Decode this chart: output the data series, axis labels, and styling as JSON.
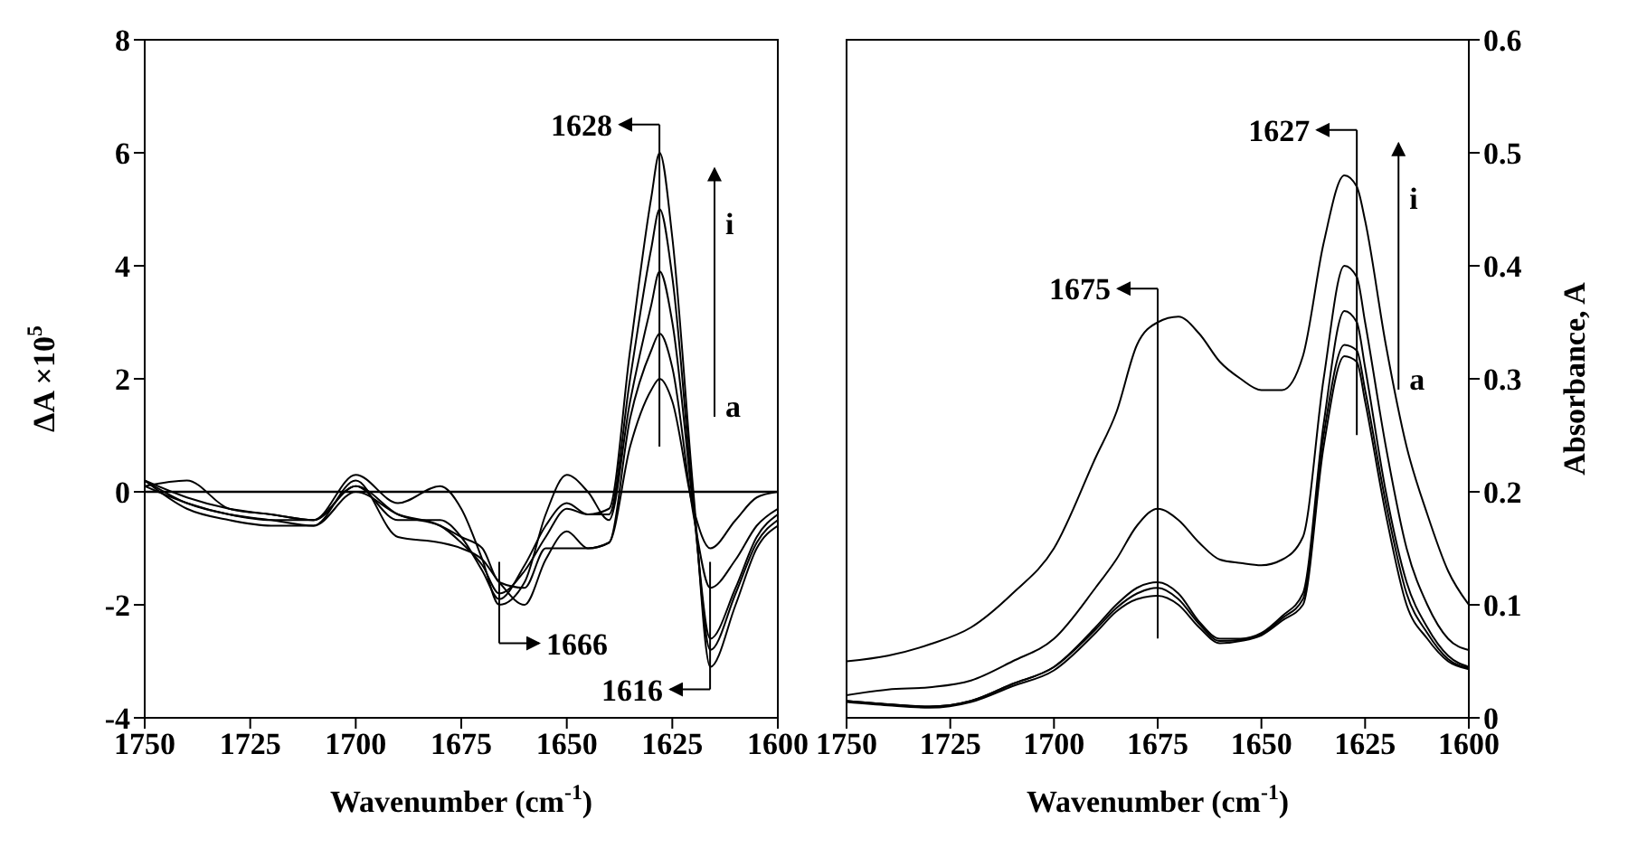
{
  "chart_data": [
    {
      "type": "line",
      "xlabel": "Wavenumber (cm$^{-1}$)",
      "ylabel": "ΔA ×10$^{5}$",
      "xlim": [
        1750,
        1600
      ],
      "xticks": [
        1750,
        1725,
        1700,
        1675,
        1650,
        1625,
        1600
      ],
      "ylim": [
        -4,
        8
      ],
      "yticks": [
        -4,
        -2,
        0,
        2,
        4,
        6,
        8
      ],
      "marker": "none",
      "line_style": "solid",
      "x": [
        1750,
        1740,
        1730,
        1720,
        1710,
        1700,
        1690,
        1680,
        1675,
        1670,
        1666,
        1660,
        1655,
        1650,
        1645,
        1640,
        1635,
        1630,
        1628,
        1625,
        1620,
        1616,
        1610,
        1605,
        1600
      ],
      "ref_lines": [
        {
          "axis": "y",
          "value": 0,
          "color": "#000000"
        }
      ],
      "series": [
        {
          "color": "#000000",
          "values": [
            0.2,
            -0.1,
            -0.3,
            -0.4,
            -0.5,
            0.1,
            -0.5,
            -0.5,
            -0.8,
            -1.4,
            -1.9,
            -1.3,
            -0.6,
            -0.2,
            -0.4,
            -0.3,
            2.5,
            5.2,
            6.0,
            4.5,
            0.0,
            -3.1,
            -2.0,
            -1.0,
            -0.6
          ]
        },
        {
          "color": "#000000",
          "values": [
            0.2,
            -0.2,
            -0.4,
            -0.5,
            -0.6,
            0.0,
            -0.4,
            -0.6,
            -0.9,
            -1.3,
            -1.8,
            -1.4,
            -0.8,
            -0.3,
            -0.4,
            -0.4,
            2.0,
            4.3,
            5.0,
            3.8,
            -0.2,
            -2.8,
            -1.8,
            -0.9,
            -0.5
          ]
        },
        {
          "color": "#000000",
          "values": [
            0.1,
            0.2,
            -0.3,
            -0.4,
            -0.5,
            0.3,
            -0.2,
            0.1,
            -0.3,
            -1.2,
            -2.0,
            -1.6,
            -0.4,
            0.3,
            0.0,
            -0.5,
            1.6,
            3.3,
            3.9,
            3.0,
            -0.3,
            -2.6,
            -1.7,
            -0.8,
            -0.4
          ]
        },
        {
          "color": "#000000",
          "values": [
            0.2,
            -0.3,
            -0.5,
            -0.6,
            -0.6,
            0.2,
            -0.8,
            -0.9,
            -1.0,
            -1.2,
            -1.6,
            -2.0,
            -1.2,
            -0.7,
            -1.0,
            -0.9,
            1.3,
            2.5,
            2.8,
            2.2,
            -0.4,
            -1.7,
            -1.2,
            -0.6,
            -0.3
          ]
        },
        {
          "color": "#000000",
          "values": [
            0.1,
            -0.2,
            -0.4,
            -0.5,
            -0.5,
            0.1,
            -0.4,
            -0.6,
            -0.8,
            -1.0,
            -1.6,
            -1.7,
            -1.0,
            -1.0,
            -1.0,
            -0.9,
            0.8,
            1.8,
            2.0,
            1.6,
            -0.3,
            -1.0,
            -0.5,
            -0.1,
            0.0
          ]
        }
      ],
      "annotations": [
        "1628",
        "1666",
        "1616",
        "i",
        "a"
      ]
    },
    {
      "type": "line",
      "xlabel": "Wavenumber (cm$^{-1}$)",
      "ylabel": "Absorbance, A",
      "xlim": [
        1750,
        1600
      ],
      "xticks": [
        1750,
        1725,
        1700,
        1675,
        1650,
        1625,
        1600
      ],
      "ylim": [
        0,
        0.6
      ],
      "yticks": [
        0,
        0.1,
        0.2,
        0.3,
        0.4,
        0.5,
        0.6
      ],
      "marker": "none",
      "line_style": "solid",
      "x": [
        1750,
        1740,
        1730,
        1720,
        1710,
        1700,
        1690,
        1685,
        1680,
        1675,
        1670,
        1665,
        1660,
        1655,
        1650,
        1645,
        1640,
        1635,
        1630,
        1627,
        1625,
        1620,
        1615,
        1610,
        1605,
        1600
      ],
      "series": [
        {
          "color": "#000000",
          "values": [
            0.05,
            0.055,
            0.065,
            0.08,
            0.11,
            0.15,
            0.23,
            0.27,
            0.33,
            0.35,
            0.355,
            0.34,
            0.315,
            0.3,
            0.29,
            0.29,
            0.32,
            0.42,
            0.48,
            0.47,
            0.44,
            0.33,
            0.24,
            0.18,
            0.13,
            0.1
          ]
        },
        {
          "color": "#000000",
          "values": [
            0.02,
            0.025,
            0.027,
            0.033,
            0.05,
            0.07,
            0.115,
            0.14,
            0.17,
            0.185,
            0.175,
            0.155,
            0.14,
            0.137,
            0.135,
            0.14,
            0.16,
            0.3,
            0.4,
            0.39,
            0.35,
            0.24,
            0.15,
            0.1,
            0.07,
            0.06
          ]
        },
        {
          "color": "#000000",
          "values": [
            0.015,
            0.012,
            0.01,
            0.015,
            0.03,
            0.045,
            0.08,
            0.1,
            0.115,
            0.12,
            0.11,
            0.085,
            0.07,
            0.07,
            0.075,
            0.09,
            0.11,
            0.26,
            0.36,
            0.35,
            0.31,
            0.2,
            0.12,
            0.08,
            0.055,
            0.045
          ]
        },
        {
          "color": "#000000",
          "values": [
            0.015,
            0.012,
            0.01,
            0.015,
            0.03,
            0.045,
            0.078,
            0.097,
            0.11,
            0.115,
            0.105,
            0.083,
            0.068,
            0.069,
            0.074,
            0.088,
            0.105,
            0.25,
            0.33,
            0.325,
            0.29,
            0.19,
            0.11,
            0.075,
            0.052,
            0.044
          ]
        },
        {
          "color": "#000000",
          "values": [
            0.014,
            0.011,
            0.009,
            0.014,
            0.028,
            0.042,
            0.075,
            0.094,
            0.105,
            0.108,
            0.1,
            0.08,
            0.066,
            0.068,
            0.073,
            0.086,
            0.1,
            0.24,
            0.32,
            0.315,
            0.28,
            0.18,
            0.1,
            0.07,
            0.05,
            0.043
          ]
        }
      ],
      "annotations": [
        "1675",
        "1627",
        "i",
        "a"
      ]
    }
  ]
}
